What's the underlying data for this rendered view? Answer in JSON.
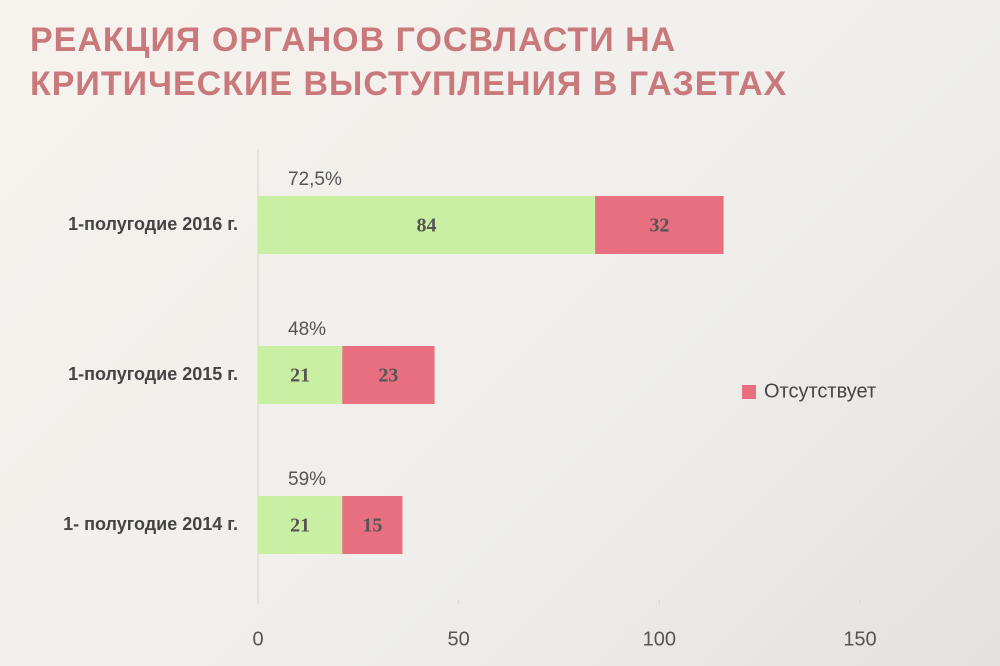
{
  "chart_data": {
    "type": "bar",
    "orientation": "horizontal",
    "stacked": true,
    "title": "РЕАКЦИЯ ОРГАНОВ ГОСВЛАСТИ НА КРИТИЧЕСКИЕ ВЫСТУПЛЕНИЯ В ГАЗЕТАХ",
    "categories": [
      "1-полугодие 2016 г.",
      "1-полугодие 2015 г.",
      "1- полугодие 2014 г."
    ],
    "annotations": [
      "72,5%",
      "48%",
      "59%"
    ],
    "series": [
      {
        "color": "#c9efa2",
        "values": [
          84,
          21,
          21
        ]
      },
      {
        "name": "Отсутствует",
        "color": "#e86f7f",
        "values": [
          32,
          23,
          15
        ]
      }
    ],
    "xlim": [
      0,
      150
    ],
    "xticks": [
      0,
      50,
      100,
      150
    ],
    "legend": "right"
  }
}
